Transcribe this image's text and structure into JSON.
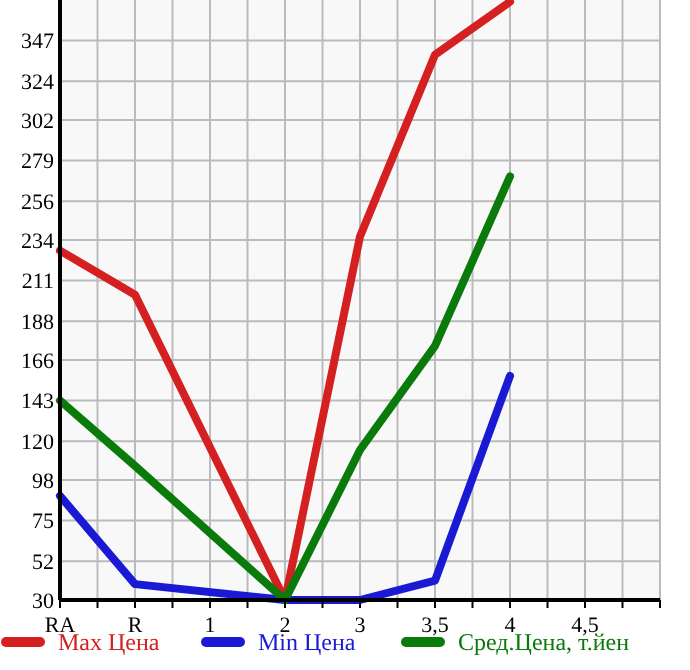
{
  "chart_data": {
    "type": "line",
    "categories": [
      "RA",
      "R",
      "1",
      "2",
      "3",
      "3,5",
      "4",
      "4,5"
    ],
    "series": [
      {
        "name": "Max Цена",
        "color": "#d42020",
        "values": [
          228,
          203,
          null,
          30,
          236,
          339,
          369,
          null
        ]
      },
      {
        "name": "Min Цена",
        "color": "#1a1ad4",
        "values": [
          89,
          39,
          null,
          30,
          30,
          41,
          157,
          null
        ]
      },
      {
        "name": "Сред.Цена, т.йен",
        "color": "#0a7a0a",
        "values": [
          143,
          106,
          null,
          30,
          115,
          174,
          270,
          null
        ]
      }
    ],
    "ylim": [
      30,
      370
    ],
    "yticks": [
      30,
      52,
      75,
      98,
      120,
      143,
      166,
      188,
      211,
      234,
      256,
      279,
      302,
      324,
      347
    ],
    "grid": true,
    "legend": "bottom",
    "marker": "none",
    "line_style": "solid"
  }
}
